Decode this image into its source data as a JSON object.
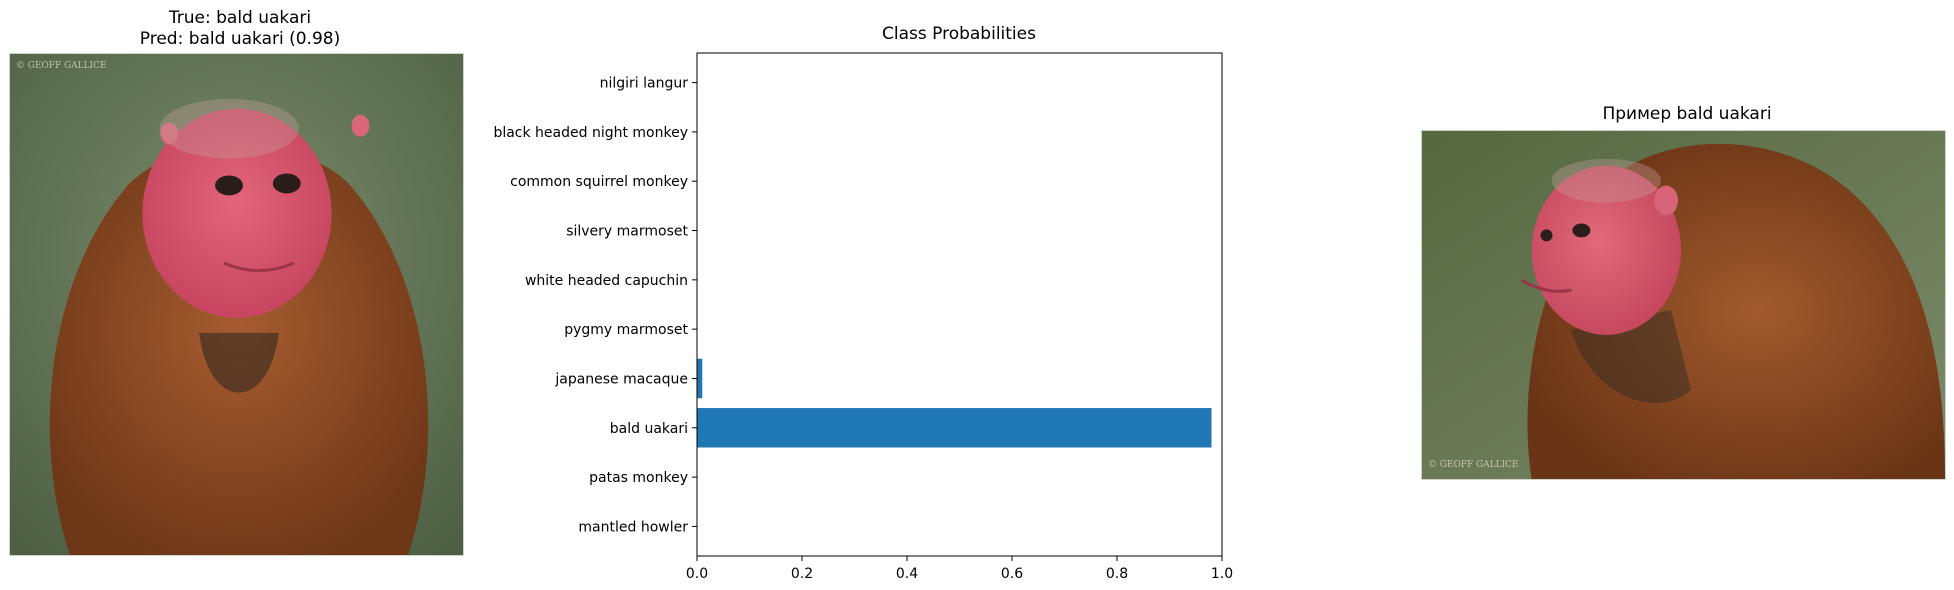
{
  "left_panel": {
    "title_line1": "True: bald uakari",
    "title_line2": "Pred: bald uakari (0.98)",
    "image_subject": "bald uakari monkey, front view",
    "watermark": "© GEOFF GALLICE"
  },
  "right_panel": {
    "title": "Пример bald uakari",
    "image_subject": "bald uakari monkey, profile view",
    "watermark": "© GEOFF GALLICE"
  },
  "chart_data": {
    "type": "bar",
    "orientation": "horizontal",
    "title": "Class Probabilities",
    "categories": [
      "mantled howler",
      "patas monkey",
      "bald uakari",
      "japanese macaque",
      "pygmy marmoset",
      "white headed capuchin",
      "silvery marmoset",
      "common squirrel monkey",
      "black headed night monkey",
      "nilgiri langur"
    ],
    "values": [
      0.0,
      0.0,
      0.98,
      0.01,
      0.0,
      0.0,
      0.0,
      0.0,
      0.0,
      0.0
    ],
    "xlim": [
      0,
      1.0
    ],
    "xticks": [
      "0.0",
      "0.2",
      "0.4",
      "0.6",
      "0.8",
      "1.0"
    ],
    "bar_color": "#1f77b4",
    "grid": false
  }
}
